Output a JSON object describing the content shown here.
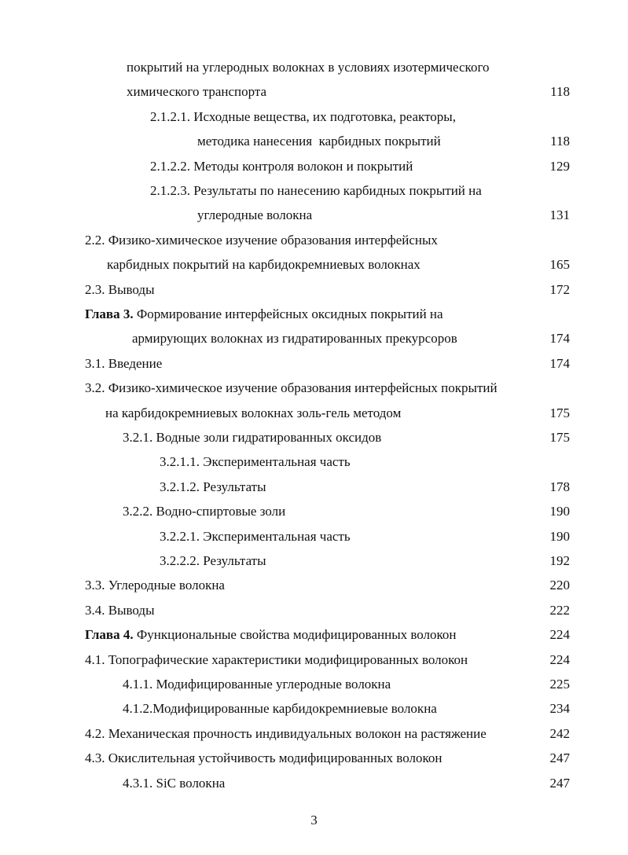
{
  "toc": [
    {
      "text": "покрытий на углеродных волокнах в условиях изотермического",
      "page": "",
      "indent": 1
    },
    {
      "text": "химического транспорта",
      "page": "118",
      "indent": 1
    },
    {
      "text": "2.1.2.1. Исходные вещества, их подготовка, реакторы,",
      "page": "",
      "indent": 2
    },
    {
      "text": "методика нанесения  карбидных покрытий",
      "page": "118",
      "indent": 3
    },
    {
      "text": "2.1.2.2. Методы контроля волокон и покрытий",
      "page": "129",
      "indent": 2
    },
    {
      "text": "2.1.2.3. Результаты по нанесению карбидных покрытий на",
      "page": "",
      "indent": 2
    },
    {
      "text": "углеродные волокна",
      "page": "131",
      "indent": 3
    },
    {
      "text": "2.2. Физико-химическое изучение образования интерфейсных",
      "page": "",
      "indent": 0
    },
    {
      "text": "карбидных покрытий на карбидокремниевых волокнах",
      "page": "165",
      "indent": 4
    },
    {
      "text": "2.3. Выводы",
      "page": "172",
      "indent": 0
    },
    {
      "bold": "Глава 3.",
      "text": " Формирование интерфейсных оксидных покрытий на",
      "page": "",
      "indent": 0
    },
    {
      "text": "армирующих волокнах из гидратированных прекурсоров",
      "page": "174",
      "indent": 5
    },
    {
      "text": "3.1. Введение",
      "page": "174",
      "indent": 0
    },
    {
      "text": "3.2. Физико-химическое изучение образования интерфейсных покрытий",
      "page": "",
      "indent": 0
    },
    {
      "text": "на карбидокремниевых волокнах золь-гель методом",
      "page": "175",
      "indent": 6
    },
    {
      "text": "3.2.1. Водные золи гидратированных оксидов",
      "page": "175",
      "indent": 7
    },
    {
      "text": "3.2.1.1. Экспериментальная часть",
      "page": "",
      "indent": 8
    },
    {
      "text": "3.2.1.2. Результаты",
      "page": "178",
      "indent": 8
    },
    {
      "text": "3.2.2. Водно-спиртовые золи",
      "page": "190",
      "indent": 7
    },
    {
      "text": "3.2.2.1. Экспериментальная часть",
      "page": "190",
      "indent": 8
    },
    {
      "text": "3.2.2.2. Результаты",
      "page": "192",
      "indent": 8
    },
    {
      "text": "3.3. Углеродные волокна",
      "page": "220",
      "indent": 0
    },
    {
      "text": "3.4. Выводы",
      "page": "222",
      "indent": 0
    },
    {
      "bold": "Глава 4.",
      "text": " Функциональные свойства модифицированных волокон",
      "page": "224",
      "indent": 0
    },
    {
      "text": "4.1. Топографические характеристики модифицированных волокон",
      "page": "224",
      "indent": 0
    },
    {
      "text": "4.1.1. Модифицированные углеродные волокна",
      "page": "225",
      "indent": 7
    },
    {
      "text": "4.1.2.Модифицированные карбидокремниевые волокна",
      "page": "234",
      "indent": 7
    },
    {
      "text": "4.2. Механическая прочность индивидуальных волокон на растяжение",
      "page": "242",
      "indent": 0
    },
    {
      "text": "4.3. Окислительная устойчивость модифицированных волокон",
      "page": "247",
      "indent": 0
    },
    {
      "text": "4.3.1. SiC волокна",
      "page": "247",
      "indent": 7
    }
  ],
  "page_number": "3"
}
